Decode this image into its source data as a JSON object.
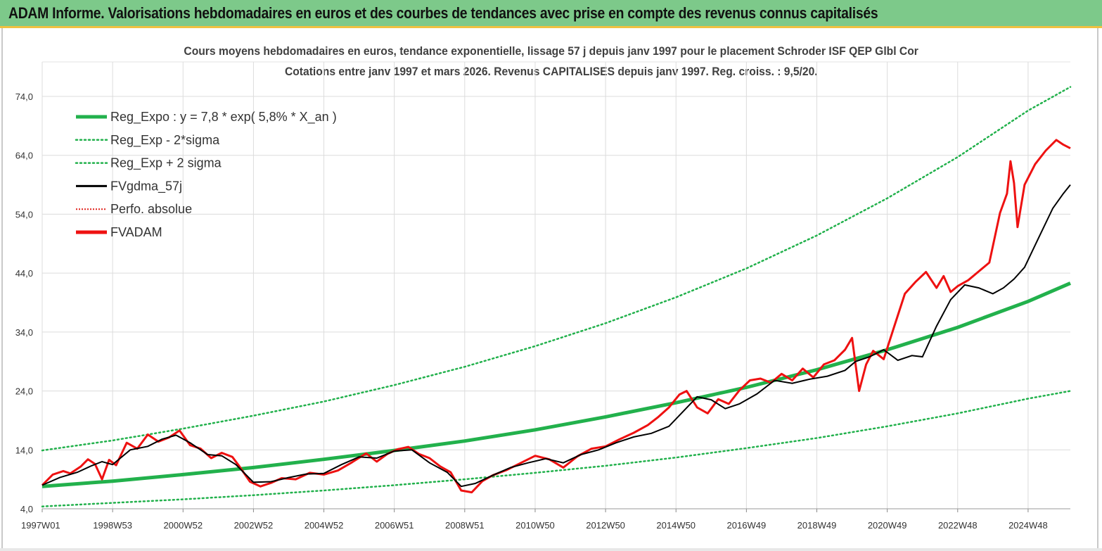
{
  "header": {
    "title": "ADAM Informe. Valorisations hebdomadaires en euros et des courbes de tendances avec prise en compte des revenus connus capitalisés",
    "color": "#7dc98a"
  },
  "chart_data": {
    "type": "line",
    "title_line1": "Cours moyens hebdomadaires en euros, tendance exponentielle, lissage 57 j depuis janv 1997 pour le placement Schroder ISF QEP Glbl Cor",
    "title_line2": "Cotations entre janv 1997 et mars 2026. Revenus CAPITALISES depuis janv 1997. Reg. croiss. : 9,5/20.",
    "ylim": [
      4.0,
      74.0
    ],
    "y_ticks": [
      "4,0",
      "14,0",
      "24,0",
      "34,0",
      "44,0",
      "54,0",
      "64,0",
      "74,0"
    ],
    "x_ticks": [
      "1997W01",
      "1998W53",
      "2000W52",
      "2002W52",
      "2004W52",
      "2006W51",
      "2008W51",
      "2010W50",
      "2012W50",
      "2014W50",
      "2016W49",
      "2018W49",
      "2020W49",
      "2022W48",
      "2024W48"
    ],
    "x_tick_years": [
      1997.0,
      1999.0,
      2001.0,
      2003.0,
      2005.0,
      2007.0,
      2009.0,
      2011.0,
      2013.0,
      2015.0,
      2017.0,
      2019.0,
      2021.0,
      2023.0,
      2025.0
    ],
    "xlim": [
      1997.0,
      2026.2
    ],
    "grid": true,
    "legend_position": "top-left",
    "legend": [
      {
        "label": "Reg_Expo : y = 7,8 * exp( 5,8% *  X_an )",
        "color": "#22b14c",
        "style": "solid-thick"
      },
      {
        "label": "Reg_Exp - 2*sigma",
        "color": "#22b14c",
        "style": "dotted"
      },
      {
        "label": "Reg_Exp + 2 sigma",
        "color": "#22b14c",
        "style": "dotted"
      },
      {
        "label": "FVgdma_57j",
        "color": "#000000",
        "style": "solid"
      },
      {
        "label": "Perfo. absolue",
        "color": "#e0201a",
        "style": "dotted"
      },
      {
        "label": "FVADAM",
        "color": "#ee1111",
        "style": "solid-thick"
      }
    ],
    "series": [
      {
        "name": "Reg_Expo : y = 7,8 * exp( 5,8% *  X_an )",
        "color": "#22b14c",
        "x": [
          1997.0,
          1999.0,
          2001.0,
          2003.0,
          2005.0,
          2007.0,
          2009.0,
          2011.0,
          2013.0,
          2015.0,
          2017.0,
          2019.0,
          2021.0,
          2023.0,
          2025.0,
          2026.2
        ],
        "values": [
          7.8,
          8.7,
          9.8,
          11.0,
          12.4,
          13.9,
          15.5,
          17.4,
          19.6,
          22.0,
          24.6,
          27.6,
          31.0,
          34.8,
          39.2,
          42.3
        ]
      },
      {
        "name": "Reg_Exp - 2*sigma",
        "color": "#22b14c",
        "x": [
          1997.0,
          1999.0,
          2001.0,
          2003.0,
          2005.0,
          2007.0,
          2009.0,
          2011.0,
          2013.0,
          2015.0,
          2017.0,
          2019.0,
          2021.0,
          2023.0,
          2025.0,
          2026.2
        ],
        "values": [
          4.4,
          5.0,
          5.6,
          6.3,
          7.1,
          8.0,
          9.0,
          10.1,
          11.3,
          12.7,
          14.3,
          16.0,
          18.0,
          20.2,
          22.7,
          24.0
        ]
      },
      {
        "name": "Reg_Exp + 2 sigma",
        "color": "#22b14c",
        "x": [
          1997.0,
          1999.0,
          2001.0,
          2003.0,
          2005.0,
          2007.0,
          2009.0,
          2011.0,
          2013.0,
          2015.0,
          2017.0,
          2019.0,
          2021.0,
          2023.0,
          2025.0,
          2026.2
        ],
        "values": [
          13.9,
          15.6,
          17.6,
          19.8,
          22.2,
          25.0,
          28.1,
          31.6,
          35.5,
          39.9,
          44.8,
          50.4,
          56.7,
          63.7,
          71.6,
          75.6
        ]
      },
      {
        "name": "FVgdma_57j",
        "color": "#000000",
        "x": [
          1997.0,
          1997.5,
          1998.0,
          1998.4,
          1998.7,
          1999.0,
          1999.5,
          2000.0,
          2000.4,
          2000.8,
          2001.2,
          2001.7,
          2002.1,
          2002.5,
          2003.0,
          2003.5,
          2004.0,
          2004.5,
          2005.0,
          2005.5,
          2006.0,
          2006.5,
          2007.0,
          2007.5,
          2008.0,
          2008.5,
          2008.9,
          2009.3,
          2009.8,
          2010.3,
          2010.8,
          2011.3,
          2011.8,
          2012.3,
          2012.8,
          2013.3,
          2013.8,
          2014.3,
          2014.8,
          2015.2,
          2015.6,
          2016.0,
          2016.4,
          2016.8,
          2017.3,
          2017.8,
          2018.3,
          2018.8,
          2019.3,
          2019.8,
          2020.1,
          2020.5,
          2020.9,
          2021.3,
          2021.7,
          2022.0,
          2022.4,
          2022.8,
          2023.2,
          2023.6,
          2024.0,
          2024.3,
          2024.6,
          2024.9,
          2025.3,
          2025.7,
          2026.0,
          2026.2
        ],
        "values": [
          8.0,
          9.3,
          10.2,
          11.3,
          12.0,
          11.5,
          14.0,
          14.6,
          15.8,
          16.5,
          15.2,
          13.2,
          13.0,
          11.5,
          8.5,
          8.6,
          9.3,
          9.9,
          10.0,
          11.5,
          12.8,
          12.6,
          13.8,
          14.0,
          11.8,
          10.2,
          7.8,
          8.3,
          9.7,
          11.0,
          11.8,
          12.5,
          11.8,
          13.2,
          14.0,
          15.2,
          16.2,
          16.8,
          18.0,
          20.5,
          23.0,
          22.5,
          21.0,
          21.8,
          23.5,
          25.8,
          25.3,
          26.0,
          26.5,
          27.5,
          29.0,
          29.8,
          31.0,
          29.2,
          30.0,
          29.8,
          35.0,
          39.5,
          42.0,
          41.5,
          40.5,
          41.5,
          43.0,
          45.0,
          50.0,
          55.0,
          57.5,
          59.0
        ]
      },
      {
        "name": "FVADAM",
        "color": "#ee1111",
        "x": [
          1997.0,
          1997.3,
          1997.6,
          1997.8,
          1998.1,
          1998.3,
          1998.5,
          1998.7,
          1998.9,
          1999.1,
          1999.4,
          1999.7,
          2000.0,
          2000.3,
          2000.6,
          2000.9,
          2001.2,
          2001.5,
          2001.8,
          2002.1,
          2002.4,
          2002.6,
          2002.9,
          2003.2,
          2003.5,
          2003.8,
          2004.2,
          2004.6,
          2005.0,
          2005.4,
          2005.8,
          2006.2,
          2006.5,
          2006.8,
          2007.1,
          2007.4,
          2007.7,
          2008.0,
          2008.3,
          2008.6,
          2008.9,
          2009.2,
          2009.5,
          2009.8,
          2010.2,
          2010.6,
          2011.0,
          2011.4,
          2011.8,
          2012.2,
          2012.6,
          2013.0,
          2013.4,
          2013.8,
          2014.2,
          2014.5,
          2014.8,
          2015.1,
          2015.3,
          2015.6,
          2015.9,
          2016.2,
          2016.5,
          2016.8,
          2017.1,
          2017.4,
          2017.7,
          2018.0,
          2018.3,
          2018.6,
          2018.9,
          2019.2,
          2019.5,
          2019.8,
          2020.0,
          2020.2,
          2020.4,
          2020.6,
          2020.9,
          2021.2,
          2021.5,
          2021.8,
          2022.1,
          2022.4,
          2022.6,
          2022.8,
          2023.0,
          2023.3,
          2023.6,
          2023.9,
          2024.2,
          2024.4,
          2024.5,
          2024.6,
          2024.7,
          2024.9,
          2025.2,
          2025.5,
          2025.8,
          2026.0,
          2026.2
        ],
        "values": [
          8.0,
          9.8,
          10.4,
          10.0,
          11.2,
          12.4,
          11.6,
          9.0,
          12.3,
          11.4,
          15.2,
          14.2,
          16.6,
          15.4,
          16.1,
          17.3,
          14.8,
          14.2,
          12.6,
          13.5,
          12.8,
          11.2,
          8.6,
          7.8,
          8.4,
          9.2,
          9.0,
          10.1,
          9.8,
          10.5,
          11.9,
          13.4,
          12.0,
          13.3,
          14.1,
          14.5,
          13.3,
          12.6,
          11.2,
          10.2,
          7.1,
          6.8,
          8.7,
          9.7,
          10.6,
          11.8,
          13.0,
          12.4,
          11.0,
          12.9,
          14.2,
          14.6,
          15.8,
          16.9,
          18.2,
          19.6,
          21.2,
          23.4,
          24.0,
          21.2,
          20.2,
          22.6,
          21.8,
          24.1,
          25.8,
          26.1,
          25.4,
          26.9,
          25.8,
          27.8,
          26.3,
          28.5,
          29.2,
          31.0,
          33.0,
          24.0,
          28.5,
          30.8,
          29.4,
          35.0,
          40.5,
          42.5,
          44.2,
          41.5,
          43.5,
          40.8,
          41.8,
          42.8,
          44.3,
          45.8,
          54.2,
          57.5,
          63.0,
          59.3,
          51.8,
          59.0,
          62.5,
          64.8,
          66.6,
          65.8,
          65.2
        ]
      }
    ]
  }
}
